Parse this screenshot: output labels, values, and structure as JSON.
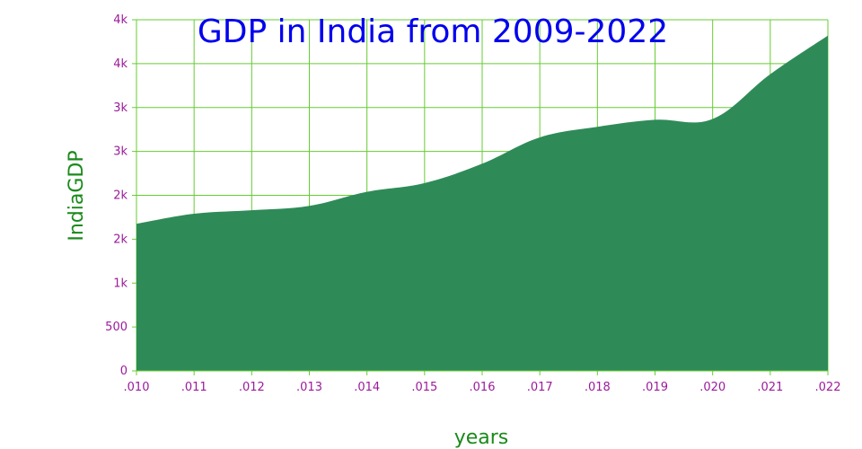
{
  "chart_data": {
    "type": "area",
    "title": "GDP in India from 2009-2022",
    "xlabel": "years",
    "ylabel": "IndiaGDP",
    "x": [
      2010,
      2011,
      2012,
      2013,
      2014,
      2015,
      2016,
      2017,
      2018,
      2019,
      2020,
      2021,
      2022
    ],
    "series": [
      {
        "values": [
          1675,
          1790,
          1830,
          1880,
          2040,
          2140,
          2360,
          2660,
          2780,
          2860,
          2870,
          3380,
          3820
        ]
      }
    ],
    "xlim": [
      2010,
      2022
    ],
    "ylim": [
      0,
      4000
    ],
    "x_tick_labels": [
      ".010",
      ".011",
      ".012",
      ".013",
      ".014",
      ".015",
      ".016",
      ".017",
      ".018",
      ".019",
      ".020",
      ".021",
      ".022"
    ],
    "y_ticks": [
      0,
      500,
      1000,
      1500,
      2000,
      2500,
      3000,
      3500,
      4000
    ],
    "y_tick_labels": [
      "0",
      "500",
      "1k",
      "2k",
      "2k",
      "3k",
      "3k",
      "4k",
      "4k"
    ],
    "grid": true,
    "legend": "none",
    "colors": {
      "area_fill": "#2e8b57",
      "grid": "#66cc33",
      "title": "#0000ee",
      "axis_label": "#1a8a1a",
      "tick_label": "#9b1b9b"
    }
  }
}
